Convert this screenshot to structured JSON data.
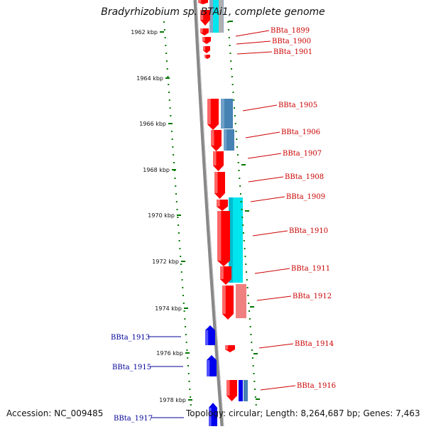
{
  "title": "Bradyrhizobium sp. BTAi1, complete genome",
  "footer": {
    "accession": "Accession: NC_009485",
    "topology": "Topology: circular; Length: 8,264,687 bp; Genes: 7,463"
  },
  "colors": {
    "forward_gene": "#ff0000",
    "reverse_gene": "#0000ee",
    "cyan_feature": "#00e5ee",
    "steelblue_feature": "#4682b4",
    "pink_feature": "#f08080",
    "label_red": "#cc0000",
    "label_blue": "#000099",
    "tick_green": "#007700",
    "backbone": "#888888"
  },
  "ruler": {
    "unit": "kbp",
    "ticks": [
      "1962 kbp",
      "1964 kbp",
      "1966 kbp",
      "1968 kbp",
      "1970 kbp",
      "1972 kbp",
      "1974 kbp",
      "1976 kbp",
      "1978 kbp"
    ]
  },
  "genes_right": [
    "BBta_1899",
    "BBta_1900",
    "BBta_1901",
    "BBta_1905",
    "BBta_1906",
    "BBta_1907",
    "BBta_1908",
    "BBta_1909",
    "BBta_1910",
    "BBta_1911",
    "BBta_1912",
    "BBta_1914",
    "BBta_1916"
  ],
  "genes_left": [
    "BBta_1913",
    "BBta_1915",
    "BBta_1917"
  ]
}
